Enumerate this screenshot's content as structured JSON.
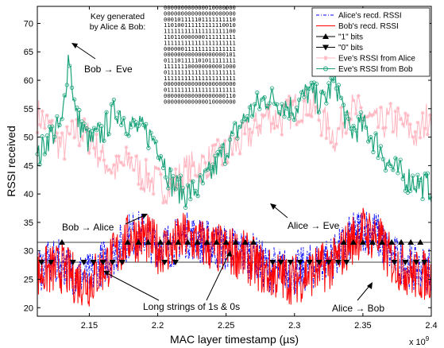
{
  "chart_data": {
    "type": "line",
    "xlabel": "MAC layer timestamp (µs)",
    "ylabel": "RSSI received",
    "x_multiplier": "x 10",
    "x_multiplier_exp": "9",
    "xlim": [
      2.112,
      2.4
    ],
    "ylim": [
      18.5,
      73
    ],
    "x_ticks": [
      2.15,
      2.2,
      2.25,
      2.3,
      2.35,
      2.4
    ],
    "x_tick_labels": [
      "2.15",
      "2.2",
      "2.25",
      "2.3",
      "2.35",
      "2.4"
    ],
    "y_ticks": [
      20,
      25,
      30,
      35,
      40,
      45,
      50,
      55,
      60,
      65,
      70
    ],
    "y_tick_labels": [
      "20",
      "25",
      "30",
      "35",
      "40",
      "45",
      "50",
      "55",
      "60",
      "65",
      "70"
    ],
    "threshold_lines": [
      31.5,
      28
    ],
    "legend_position": "top-right",
    "series": [
      {
        "name": "Alice's recd. RSSI",
        "color": "#0000ff",
        "style": "dash-dot",
        "x": [
          2.112,
          2.12,
          2.13,
          2.14,
          2.15,
          2.16,
          2.17,
          2.18,
          2.19,
          2.2,
          2.21,
          2.22,
          2.23,
          2.24,
          2.25,
          2.26,
          2.27,
          2.28,
          2.29,
          2.3,
          2.31,
          2.32,
          2.33,
          2.34,
          2.35,
          2.36,
          2.37,
          2.38,
          2.39,
          2.4
        ],
        "values": [
          27,
          27.5,
          28,
          26,
          25.5,
          28,
          30,
          33,
          33,
          31,
          31,
          33,
          32,
          31,
          30.5,
          30,
          29,
          27,
          26.5,
          26,
          27,
          28,
          29,
          32,
          34,
          33,
          29,
          28,
          26.5,
          27
        ]
      },
      {
        "name": "Bob's recd. RSSI",
        "color": "#ff0000",
        "style": "solid",
        "x": [
          2.112,
          2.12,
          2.13,
          2.14,
          2.15,
          2.16,
          2.17,
          2.18,
          2.19,
          2.2,
          2.21,
          2.22,
          2.23,
          2.24,
          2.25,
          2.26,
          2.27,
          2.28,
          2.29,
          2.3,
          2.31,
          2.32,
          2.33,
          2.34,
          2.35,
          2.36,
          2.37,
          2.38,
          2.39,
          2.4
        ],
        "values": [
          26,
          26.5,
          27,
          25,
          24.5,
          27,
          29.5,
          32.5,
          32.5,
          30.5,
          30.5,
          32.5,
          31.5,
          30.5,
          30,
          29.5,
          28,
          26,
          25.5,
          25,
          26,
          27,
          28,
          31.5,
          33.5,
          32.5,
          28.5,
          27,
          25.5,
          26
        ]
      },
      {
        "name": "\"1\" bits",
        "color": "#000000",
        "style": "marker-up",
        "value": 31.5,
        "x": [
          2.13,
          2.178,
          2.186,
          2.193,
          2.202,
          2.208,
          2.215,
          2.222,
          2.229,
          2.236,
          2.243,
          2.25,
          2.257,
          2.264,
          2.27,
          2.336,
          2.343,
          2.35,
          2.357,
          2.364,
          2.371,
          2.378,
          2.385,
          2.392
        ]
      },
      {
        "name": "\"0\" bits",
        "color": "#000000",
        "style": "marker-down",
        "value": 28,
        "x": [
          2.115,
          2.122,
          2.138,
          2.146,
          2.153,
          2.16,
          2.167,
          2.174,
          2.205,
          2.213,
          2.284,
          2.29,
          2.297,
          2.304,
          2.311,
          2.318,
          2.325,
          2.332,
          2.338,
          2.373,
          2.381,
          2.389,
          2.395
        ]
      },
      {
        "name": "Eve's RSSI from Alice",
        "color": "#ffb6c1",
        "style": "star",
        "x": [
          2.112,
          2.12,
          2.13,
          2.14,
          2.15,
          2.16,
          2.17,
          2.18,
          2.19,
          2.2,
          2.21,
          2.22,
          2.23,
          2.24,
          2.25,
          2.26,
          2.27,
          2.28,
          2.29,
          2.3,
          2.31,
          2.32,
          2.33,
          2.34,
          2.35,
          2.36,
          2.37,
          2.38,
          2.39,
          2.4
        ],
        "values": [
          54,
          52,
          48,
          51,
          50,
          46,
          44,
          46,
          43,
          42,
          41,
          44,
          45,
          46,
          47,
          49,
          51,
          54,
          53,
          55,
          56,
          53,
          50,
          55,
          54,
          52,
          53,
          52,
          50,
          55
        ]
      },
      {
        "name": "Eve's RSSI from Bob",
        "color": "#1aa37a",
        "style": "circle",
        "x": [
          2.112,
          2.12,
          2.13,
          2.135,
          2.14,
          2.15,
          2.16,
          2.17,
          2.18,
          2.19,
          2.2,
          2.21,
          2.22,
          2.23,
          2.24,
          2.25,
          2.26,
          2.27,
          2.28,
          2.29,
          2.3,
          2.31,
          2.32,
          2.33,
          2.34,
          2.35,
          2.36,
          2.37,
          2.38,
          2.39,
          2.4
        ],
        "values": [
          46,
          50,
          52,
          65,
          54,
          49,
          51,
          55,
          52,
          51,
          49,
          42,
          40,
          41,
          44,
          48,
          52,
          55,
          57,
          56,
          55,
          58,
          56,
          60,
          51,
          52,
          49,
          45,
          43,
          42,
          41
        ]
      }
    ],
    "annotations": {
      "bob_eve": "Bob → Eve",
      "bob_alice": "Bob → Alice",
      "alice_eve": "Alice → Eve",
      "alice_bob": "Alice → Bob",
      "long_strings": "Long strings of 1s & 0s",
      "key_title_1": "Key generated",
      "key_title_2": "by Alice & Bob:"
    },
    "key_bits": [
      "000000000000010000000",
      "000000000000000000000",
      "000101111101111111110",
      "110100111111111110010",
      "111111111111111111100",
      "110110000000111111111",
      "111111111111111111111",
      "000000111111111111111",
      "000000000000000000101",
      "011101111101011111111",
      "111111100000000001000",
      "011111111111111111111",
      "111111111111111111111",
      "000000000000000000000",
      "011111111111111111111",
      "000000000000000000110",
      "000000000000010000000"
    ]
  }
}
